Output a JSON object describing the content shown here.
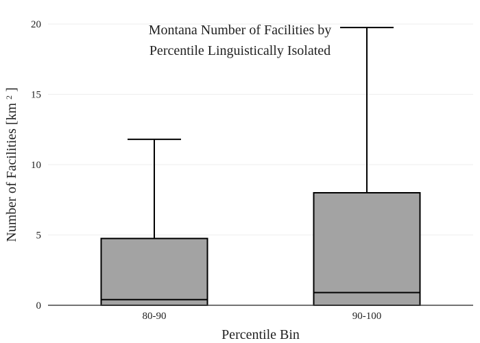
{
  "chart_data": {
    "type": "box",
    "title_lines": [
      "Montana Number of Facilities by",
      "Percentile Linguistically Isolated"
    ],
    "xlabel": "Percentile Bin",
    "ylabel": "Number of Facilities",
    "ylabel_unit": "[km",
    "ylabel_unit_sup": "2",
    "ylabel_unit_close": "]",
    "ylim": [
      0,
      20
    ],
    "yticks": [
      0,
      5,
      10,
      15,
      20
    ],
    "grid": true,
    "categories": [
      "80-90",
      "90-100"
    ],
    "boxes": [
      {
        "category": "80-90",
        "lower": 0,
        "q1": 0,
        "median": 0.4,
        "q3": 4.75,
        "upper": 11.8
      },
      {
        "category": "90-100",
        "lower": 0,
        "q1": 0,
        "median": 0.9,
        "q3": 8.0,
        "upper": 19.75
      }
    ],
    "colors": {
      "box_fill": "#a3a3a3",
      "line": "#000000",
      "grid": "#eeeeee",
      "axis": "#444444",
      "text": "#222222"
    }
  }
}
